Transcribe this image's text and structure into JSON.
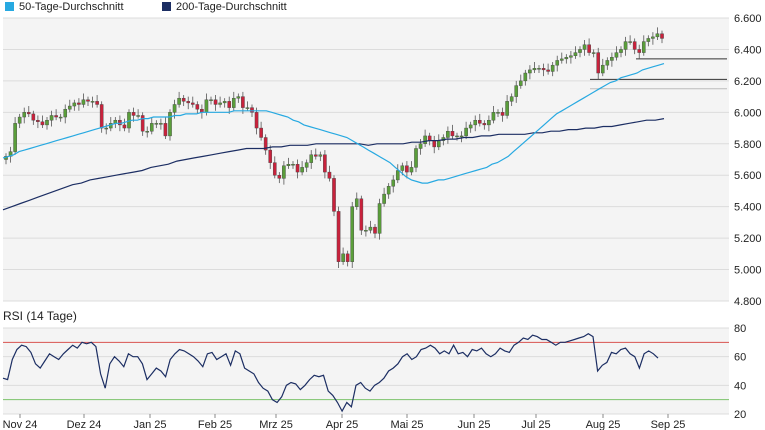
{
  "legend": [
    {
      "label": "50-Tage-Durchschnitt",
      "color": "#27a9e1"
    },
    {
      "label": "200-Tage-Durchschnitt",
      "color": "#1c2e63"
    }
  ],
  "rsi_title": "RSI (14 Tage)",
  "colors": {
    "up": "#5a9e3a",
    "down": "#c8223c",
    "grid": "#dcdcdc",
    "bg": "#f4f4f4",
    "sma50": "#27a9e1",
    "sma200": "#1c2e63",
    "rsi": "#1c2e63",
    "rsi_upper": "#d9534f",
    "rsi_lower": "#7cc36b"
  },
  "chart_data": [
    {
      "type": "candlestick",
      "ylim": [
        4.8,
        6.6
      ],
      "yticks": [
        "6.600",
        "6.400",
        "6.200",
        "6.000",
        "5.800",
        "5.600",
        "5.400",
        "5.200",
        "5.000",
        "4.800"
      ],
      "xticks": [
        "Nov 24",
        "Dez 24",
        "Jan 25",
        "Feb 25",
        "Mrz 25",
        "Apr 25",
        "Mai 25",
        "Jun 25",
        "Jul 25",
        "Aug 25",
        "Sep 25"
      ],
      "grid": true,
      "legend_position": "top-left",
      "closes": [
        5.72,
        5.75,
        5.93,
        5.97,
        6.0,
        5.99,
        5.95,
        5.94,
        5.92,
        5.95,
        5.98,
        5.97,
        5.97,
        6.02,
        6.04,
        6.06,
        6.05,
        6.08,
        6.07,
        6.07,
        6.05,
        5.9,
        5.9,
        5.93,
        5.95,
        5.92,
        5.9,
        6.0,
        5.98,
        5.98,
        5.88,
        5.88,
        5.93,
        5.93,
        5.93,
        5.85,
        6.0,
        6.05,
        6.09,
        6.07,
        6.06,
        6.05,
        6.02,
        6.0,
        6.08,
        6.08,
        6.05,
        6.06,
        6.07,
        6.03,
        6.09,
        6.1,
        6.03,
        6.03,
        6.0,
        5.9,
        5.84,
        5.76,
        5.68,
        5.6,
        5.58,
        5.66,
        5.67,
        5.67,
        5.62,
        5.65,
        5.68,
        5.73,
        5.72,
        5.73,
        5.62,
        5.58,
        5.37,
        5.05,
        5.1,
        5.05,
        5.4,
        5.45,
        5.25,
        5.25,
        5.27,
        5.23,
        5.42,
        5.48,
        5.53,
        5.57,
        5.63,
        5.66,
        5.62,
        5.65,
        5.77,
        5.8,
        5.85,
        5.82,
        5.78,
        5.82,
        5.84,
        5.88,
        5.85,
        5.85,
        5.85,
        5.9,
        5.92,
        5.95,
        5.93,
        5.92,
        5.95,
        6.0,
        6.0,
        5.98,
        6.07,
        6.1,
        6.17,
        6.2,
        6.25,
        6.27,
        6.28,
        6.28,
        6.27,
        6.26,
        6.3,
        6.33,
        6.34,
        6.35,
        6.36,
        6.38,
        6.4,
        6.43,
        6.38,
        6.38,
        6.25,
        6.3,
        6.33,
        6.35,
        6.38,
        6.4,
        6.45,
        6.45,
        6.4,
        6.38,
        6.45,
        6.47,
        6.48,
        6.5,
        6.47
      ],
      "sma50": [
        5.71,
        5.72,
        5.73,
        5.75,
        5.76,
        5.77,
        5.78,
        5.79,
        5.8,
        5.81,
        5.82,
        5.83,
        5.84,
        5.85,
        5.86,
        5.87,
        5.88,
        5.89,
        5.9,
        5.91,
        5.92,
        5.93,
        5.93,
        5.94,
        5.95,
        5.95,
        5.96,
        5.96,
        5.97,
        5.97,
        5.97,
        5.97,
        5.98,
        5.98,
        5.99,
        5.99,
        5.99,
        6.0,
        6.0,
        6.0,
        6.0,
        6.0,
        6.0,
        6.01,
        6.01,
        6.01,
        6.01,
        6.01,
        6.01,
        6.01,
        6.0,
        5.99,
        5.98,
        5.97,
        5.95,
        5.94,
        5.92,
        5.91,
        5.9,
        5.89,
        5.88,
        5.87,
        5.86,
        5.85,
        5.84,
        5.82,
        5.8,
        5.78,
        5.76,
        5.74,
        5.72,
        5.7,
        5.68,
        5.65,
        5.62,
        5.59,
        5.57,
        5.56,
        5.55,
        5.55,
        5.56,
        5.57,
        5.57,
        5.58,
        5.59,
        5.6,
        5.61,
        5.62,
        5.63,
        5.64,
        5.65,
        5.67,
        5.68,
        5.7,
        5.72,
        5.75,
        5.78,
        5.81,
        5.84,
        5.87,
        5.9,
        5.93,
        5.96,
        5.99,
        6.01,
        6.03,
        6.05,
        6.07,
        6.09,
        6.11,
        6.13,
        6.15,
        6.17,
        6.19,
        6.2,
        6.22,
        6.23,
        6.24,
        6.25,
        6.27,
        6.28,
        6.29,
        6.3,
        6.31
      ],
      "sma200": [
        5.38,
        5.4,
        5.42,
        5.44,
        5.46,
        5.48,
        5.5,
        5.52,
        5.54,
        5.55,
        5.57,
        5.58,
        5.59,
        5.6,
        5.61,
        5.62,
        5.63,
        5.65,
        5.66,
        5.67,
        5.69,
        5.7,
        5.71,
        5.72,
        5.73,
        5.74,
        5.75,
        5.76,
        5.77,
        5.77,
        5.77,
        5.78,
        5.78,
        5.79,
        5.79,
        5.79,
        5.8,
        5.8,
        5.8,
        5.8,
        5.8,
        5.8,
        5.79,
        5.8,
        5.8,
        5.8,
        5.8,
        5.81,
        5.81,
        5.82,
        5.82,
        5.83,
        5.83,
        5.84,
        5.84,
        5.85,
        5.85,
        5.86,
        5.86,
        5.86,
        5.86,
        5.87,
        5.87,
        5.88,
        5.88,
        5.89,
        5.89,
        5.9,
        5.9,
        5.91,
        5.91,
        5.92,
        5.93,
        5.94,
        5.95,
        5.95,
        5.96
      ],
      "reference_levels": [
        6.34,
        6.21,
        6.15
      ]
    },
    {
      "type": "line",
      "title": "RSI (14 Tage)",
      "ylim": [
        20,
        80
      ],
      "yticks": [
        "80",
        "60",
        "40",
        "20"
      ],
      "thresholds": [
        70,
        30
      ],
      "values": [
        45,
        44,
        58,
        65,
        68,
        67,
        63,
        55,
        52,
        57,
        62,
        60,
        58,
        62,
        65,
        68,
        66,
        70,
        69,
        70,
        67,
        48,
        38,
        55,
        60,
        57,
        53,
        62,
        60,
        60,
        55,
        44,
        48,
        52,
        50,
        46,
        58,
        62,
        65,
        64,
        62,
        60,
        57,
        53,
        62,
        63,
        58,
        60,
        62,
        54,
        64,
        62,
        52,
        50,
        48,
        42,
        38,
        36,
        30,
        28,
        32,
        40,
        42,
        41,
        37,
        40,
        44,
        47,
        46,
        47,
        36,
        33,
        28,
        22,
        28,
        25,
        40,
        42,
        38,
        36,
        40,
        42,
        45,
        50,
        52,
        55,
        60,
        62,
        58,
        60,
        65,
        66,
        68,
        66,
        62,
        64,
        62,
        68,
        62,
        63,
        60,
        65,
        64,
        66,
        62,
        60,
        62,
        66,
        64,
        63,
        68,
        70,
        73,
        72,
        75,
        74,
        72,
        72,
        70,
        68,
        70,
        70,
        71,
        72,
        73,
        74,
        76,
        74,
        50,
        54,
        56,
        63,
        62,
        65,
        66,
        62,
        60,
        52,
        62,
        64,
        62,
        59
      ]
    }
  ]
}
